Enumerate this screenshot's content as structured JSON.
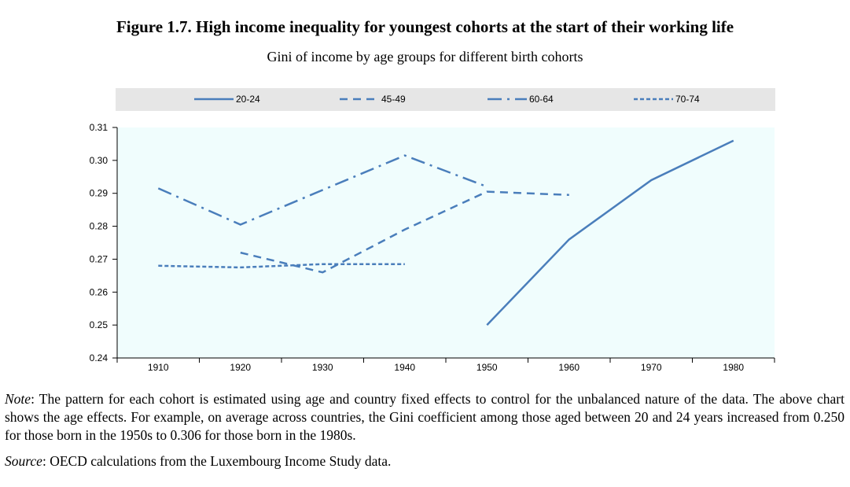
{
  "figure": {
    "title": "Figure 1.7. High income inequality for youngest cohorts at the start of their working life",
    "subtitle": "Gini of income by age groups for different birth cohorts"
  },
  "chart_data": {
    "type": "line",
    "title": "Figure 1.7. High income inequality for youngest cohorts at the start of their working life",
    "subtitle": "Gini of income by age groups for different birth cohorts",
    "xlabel": "",
    "ylabel": "",
    "x": [
      1910,
      1920,
      1930,
      1940,
      1950,
      1960,
      1970,
      1980
    ],
    "xlim": [
      1905,
      1985
    ],
    "ylim": [
      0.24,
      0.31
    ],
    "yticks": [
      "0.24",
      "0.25",
      "0.26",
      "0.27",
      "0.28",
      "0.29",
      "0.30",
      "0.31"
    ],
    "xticks": [
      "1910",
      "1920",
      "1930",
      "1940",
      "1950",
      "1960",
      "1970",
      "1980"
    ],
    "legend_position": "top",
    "grid": false,
    "plot_background": "#f0fdfd",
    "series": [
      {
        "name": "20-24",
        "color": "#4a7ebb",
        "dash": "solid",
        "x": [
          1950,
          1960,
          1970,
          1980
        ],
        "values": [
          0.25,
          0.276,
          0.294,
          0.306
        ]
      },
      {
        "name": "45-49",
        "color": "#4a7ebb",
        "dash": "dash",
        "x": [
          1920,
          1930,
          1940,
          1950,
          1960
        ],
        "values": [
          0.272,
          0.266,
          0.279,
          0.2905,
          0.2895
        ]
      },
      {
        "name": "60-64",
        "color": "#4a7ebb",
        "dash": "dashdot",
        "x": [
          1910,
          1920,
          1930,
          1940,
          1950
        ],
        "values": [
          0.2915,
          0.2805,
          0.291,
          0.3015,
          0.292
        ]
      },
      {
        "name": "70-74",
        "color": "#4a7ebb",
        "dash": "dot",
        "x": [
          1910,
          1920,
          1930,
          1940
        ],
        "values": [
          0.268,
          0.2675,
          0.2685,
          0.2685
        ]
      }
    ]
  },
  "notes": {
    "note_label": "Note",
    "note_text": ": The pattern for each cohort is estimated using age and country fixed effects to control for the unbalanced nature of the data. The above chart shows the age effects. For example, on average across countries, the Gini coefficient among those aged between 20 and 24 years increased from 0.250 for those born in the 1950s to 0.306 for those born in the 1980s.",
    "source_label": "Source",
    "source_text": ": OECD calculations from the Luxembourg Income Study data."
  }
}
